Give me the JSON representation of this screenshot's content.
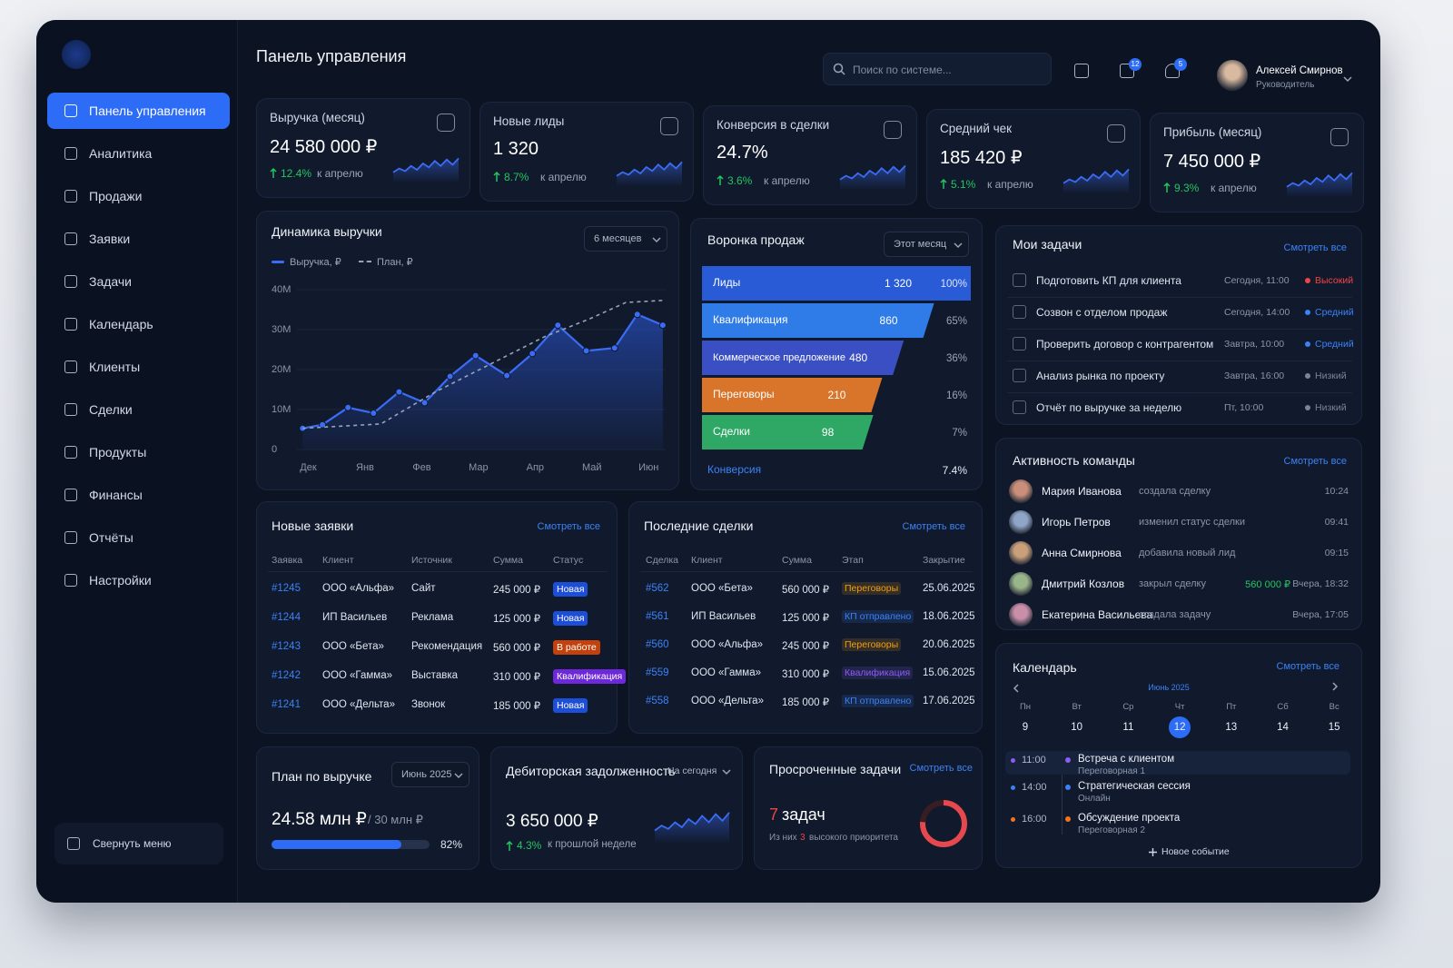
{
  "sidebar": {
    "menu": [
      "Панель управления",
      "Аналитика",
      "Продажи",
      "Заявки",
      "Задачи",
      "Календарь",
      "Клиенты",
      "Сделки",
      "Продукты",
      "Финансы",
      "Отчёты",
      "Настройки"
    ],
    "collapse": "Свернуть меню"
  },
  "header": {
    "title": "Панель управления",
    "search": "Поиск по системе...",
    "mail_badge": 12,
    "bell_badge": 5,
    "user_name": "Алексей Смирнов",
    "user_role": "Руководитель"
  },
  "kpis": [
    {
      "title": "Выручка (месяц)",
      "value": "24 580 000 ₽",
      "change": "12.4%",
      "note": "к апрелю"
    },
    {
      "title": "Новые лиды",
      "value": "1 320",
      "change": "8.7%",
      "note": "к апрелю"
    },
    {
      "title": "Конверсия в сделки",
      "value": "24.7%",
      "change": "3.6%",
      "note": "к апрелю"
    },
    {
      "title": "Средний чек",
      "value": "185 420 ₽",
      "change": "5.1%",
      "note": "к апрелю"
    },
    {
      "title": "Прибыль (месяц)",
      "value": "7 450 000 ₽",
      "change": "9.3%",
      "note": "к апрелю"
    }
  ],
  "revenue_chart": {
    "type": "line",
    "title": "Динамика выручки",
    "period": "6 месяцев",
    "series": [
      {
        "name": "Выручка, ₽",
        "color": "#3b6cf6",
        "markers": true,
        "x": [
          -0.1,
          0.25,
          0.7,
          1.15,
          1.6,
          2.05,
          2.5,
          2.95,
          3.5,
          3.95,
          4.4,
          4.9,
          5.4,
          5.8,
          6.25
        ],
        "values": [
          5300000,
          6200000,
          10500000,
          9100000,
          14400000,
          11700000,
          18300000,
          23500000,
          18500000,
          24000000,
          31100000,
          24700000,
          25400000,
          33800000,
          31100000
        ]
      },
      {
        "name": "План, ₽",
        "color": "#9aa4b8",
        "dashed": true,
        "x": [
          -0.1,
          1.28,
          2.24,
          3.2,
          4.16,
          4.96,
          5.6,
          6.24
        ],
        "values": [
          5300000,
          6400000,
          14400000,
          21300000,
          28200000,
          32700000,
          36800000,
          37300000
        ]
      }
    ],
    "xlim": [
      -0.2,
      6.3
    ],
    "xticks": [
      {
        "value": 0,
        "label": "Дек"
      },
      {
        "value": 1,
        "label": "Янв"
      },
      {
        "value": 2,
        "label": "Фев"
      },
      {
        "value": 3,
        "label": "Мар"
      },
      {
        "value": 4,
        "label": "Апр"
      },
      {
        "value": 5,
        "label": "Май"
      },
      {
        "value": 6,
        "label": "Июн"
      }
    ],
    "ylim": [
      0,
      40000000
    ],
    "yticks": [
      0,
      {
        "value": 10000000,
        "label": "10M"
      },
      {
        "value": 20000000,
        "label": "20M"
      },
      {
        "value": 30000000,
        "label": "30M"
      },
      {
        "value": 40000000,
        "label": "40M"
      }
    ]
  },
  "funnel": {
    "type": "funnel",
    "title": "Воронка продаж",
    "period": "Этот месяц",
    "stages": [
      {
        "name": "Лиды",
        "value": 1320,
        "value_label": "1 320",
        "share": "100%",
        "color": "#2a5bd7"
      },
      {
        "name": "Квалификация",
        "value": 860,
        "value_label": "860",
        "share": "65%",
        "color": "#2f7ce8"
      },
      {
        "name": "Коммерческое предложение",
        "value": 480,
        "value_label": "480",
        "share": "36%",
        "color": "#3b4fc4"
      },
      {
        "name": "Переговоры",
        "value": 210,
        "value_label": "210",
        "share": "16%",
        "color": "#d9752a"
      },
      {
        "name": "Сделки",
        "value": 98,
        "value_label": "98",
        "share": "7%",
        "color": "#2fa866"
      }
    ],
    "conversion_label": "Конверсия",
    "conversion": "7.4%"
  },
  "tasks": {
    "title": "Мои задачи",
    "link": "Смотреть все",
    "items": [
      {
        "text": "Подготовить КП для клиента",
        "due": "Сегодня, 11:00",
        "priority": "Высокий",
        "color": "#ef4444"
      },
      {
        "text": "Созвон с отделом продаж",
        "due": "Сегодня, 14:00",
        "priority": "Средний",
        "color": "#3b82f6"
      },
      {
        "text": "Проверить договор с контрагентом",
        "due": "Завтра, 10:00",
        "priority": "Средний",
        "color": "#3b82f6"
      },
      {
        "text": "Анализ рынка по проекту",
        "due": "Завтра, 16:00",
        "priority": "Низкий",
        "color": "#7b8598"
      },
      {
        "text": "Отчёт по выручке за неделю",
        "due": "Пт, 10:00",
        "priority": "Низкий",
        "color": "#7b8598"
      }
    ]
  },
  "team": {
    "title": "Активность команды",
    "link": "Смотреть все",
    "items": [
      {
        "name": "Мария Иванова",
        "action": "создала сделку",
        "time": "10:24"
      },
      {
        "name": "Игорь Петров",
        "action": "изменил статус сделки",
        "time": "09:41"
      },
      {
        "name": "Анна Смирнова",
        "action": "добавила новый лид",
        "time": "09:15"
      },
      {
        "name": "Дмитрий Козлов",
        "action": "закрыл сделку",
        "amount": "560 000 ₽",
        "time": "Вчера, 18:32"
      },
      {
        "name": "Екатерина Васильева",
        "action": "создала задачу",
        "time": "Вчера, 17:05"
      }
    ]
  },
  "calendar": {
    "title": "Календарь",
    "link": "Смотреть все",
    "month": "Июнь 2025",
    "weekdays": [
      "Пн",
      "Вт",
      "Ср",
      "Чт",
      "Пт",
      "Сб",
      "Вс"
    ],
    "dates": [
      9,
      10,
      11,
      12,
      13,
      14,
      15
    ],
    "selected": 12,
    "events": [
      {
        "time": "11:00",
        "title": "Встреча с клиентом",
        "place": "Переговорная 1",
        "color": "#8b5cf6"
      },
      {
        "time": "14:00",
        "title": "Стратегическая сессия",
        "place": "Онлайн",
        "color": "#3b82f6"
      },
      {
        "time": "16:00",
        "title": "Обсуждение проекта",
        "place": "Переговорная 2",
        "color": "#f97316"
      }
    ],
    "add": "Новое событие"
  },
  "requests": {
    "title": "Новые заявки",
    "link": "Смотреть все",
    "columns": [
      "Заявка",
      "Клиент",
      "Источник",
      "Сумма",
      "Статус"
    ],
    "rows": [
      [
        "#1245",
        "ООО «Альфа»",
        "Сайт",
        "245 000 ₽",
        "Новая"
      ],
      [
        "#1244",
        "ИП Васильев",
        "Реклама",
        "125 000 ₽",
        "Новая"
      ],
      [
        "#1243",
        "ООО «Бета»",
        "Рекомендация",
        "560 000 ₽",
        "В работе"
      ],
      [
        "#1242",
        "ООО «Гамма»",
        "Выставка",
        "310 000 ₽",
        "Квалификация"
      ],
      [
        "#1241",
        "ООО «Дельта»",
        "Звонок",
        "185 000 ₽",
        "Новая"
      ]
    ],
    "status_colors": [
      "#1d4ed8",
      "#1d4ed8",
      "#c2410c",
      "#6d28d9",
      "#1d4ed8"
    ]
  },
  "deals": {
    "title": "Последние сделки",
    "link": "Смотреть все",
    "columns": [
      "Сделка",
      "Клиент",
      "Сумма",
      "Этап",
      "Закрытие"
    ],
    "rows": [
      [
        "#562",
        "ООО «Бета»",
        "560 000 ₽",
        "Переговоры",
        "25.06.2025"
      ],
      [
        "#561",
        "ИП Васильев",
        "125 000 ₽",
        "КП отправлено",
        "18.06.2025"
      ],
      [
        "#560",
        "ООО «Альфа»",
        "245 000 ₽",
        "Переговоры",
        "20.06.2025"
      ],
      [
        "#559",
        "ООО «Гамма»",
        "310 000 ₽",
        "Квалификация",
        "15.06.2025"
      ],
      [
        "#558",
        "ООО «Дельта»",
        "185 000 ₽",
        "КП отправлено",
        "17.06.2025"
      ]
    ],
    "status_colors": [
      "#f59e0b",
      "#3b82f6",
      "#f59e0b",
      "#8b5cf6",
      "#3b82f6"
    ]
  },
  "plan": {
    "title": "План по выручке",
    "period": "Июнь 2025",
    "value": "24.58 млн ₽",
    "target": "/ 30 млн ₽",
    "progress": 82,
    "progress_label": "82%"
  },
  "debt": {
    "title": "Дебиторская задолженность",
    "period": "На сегодня",
    "value": "3 650 000 ₽",
    "change": "4.3%",
    "note": "к прошлой неделе"
  },
  "overdue": {
    "title": "Просроченные задачи",
    "link": "Смотреть все",
    "count": 7,
    "unit": "задач",
    "note_before": "Из них",
    "high": 3,
    "note_after": "высокого приоритета"
  }
}
